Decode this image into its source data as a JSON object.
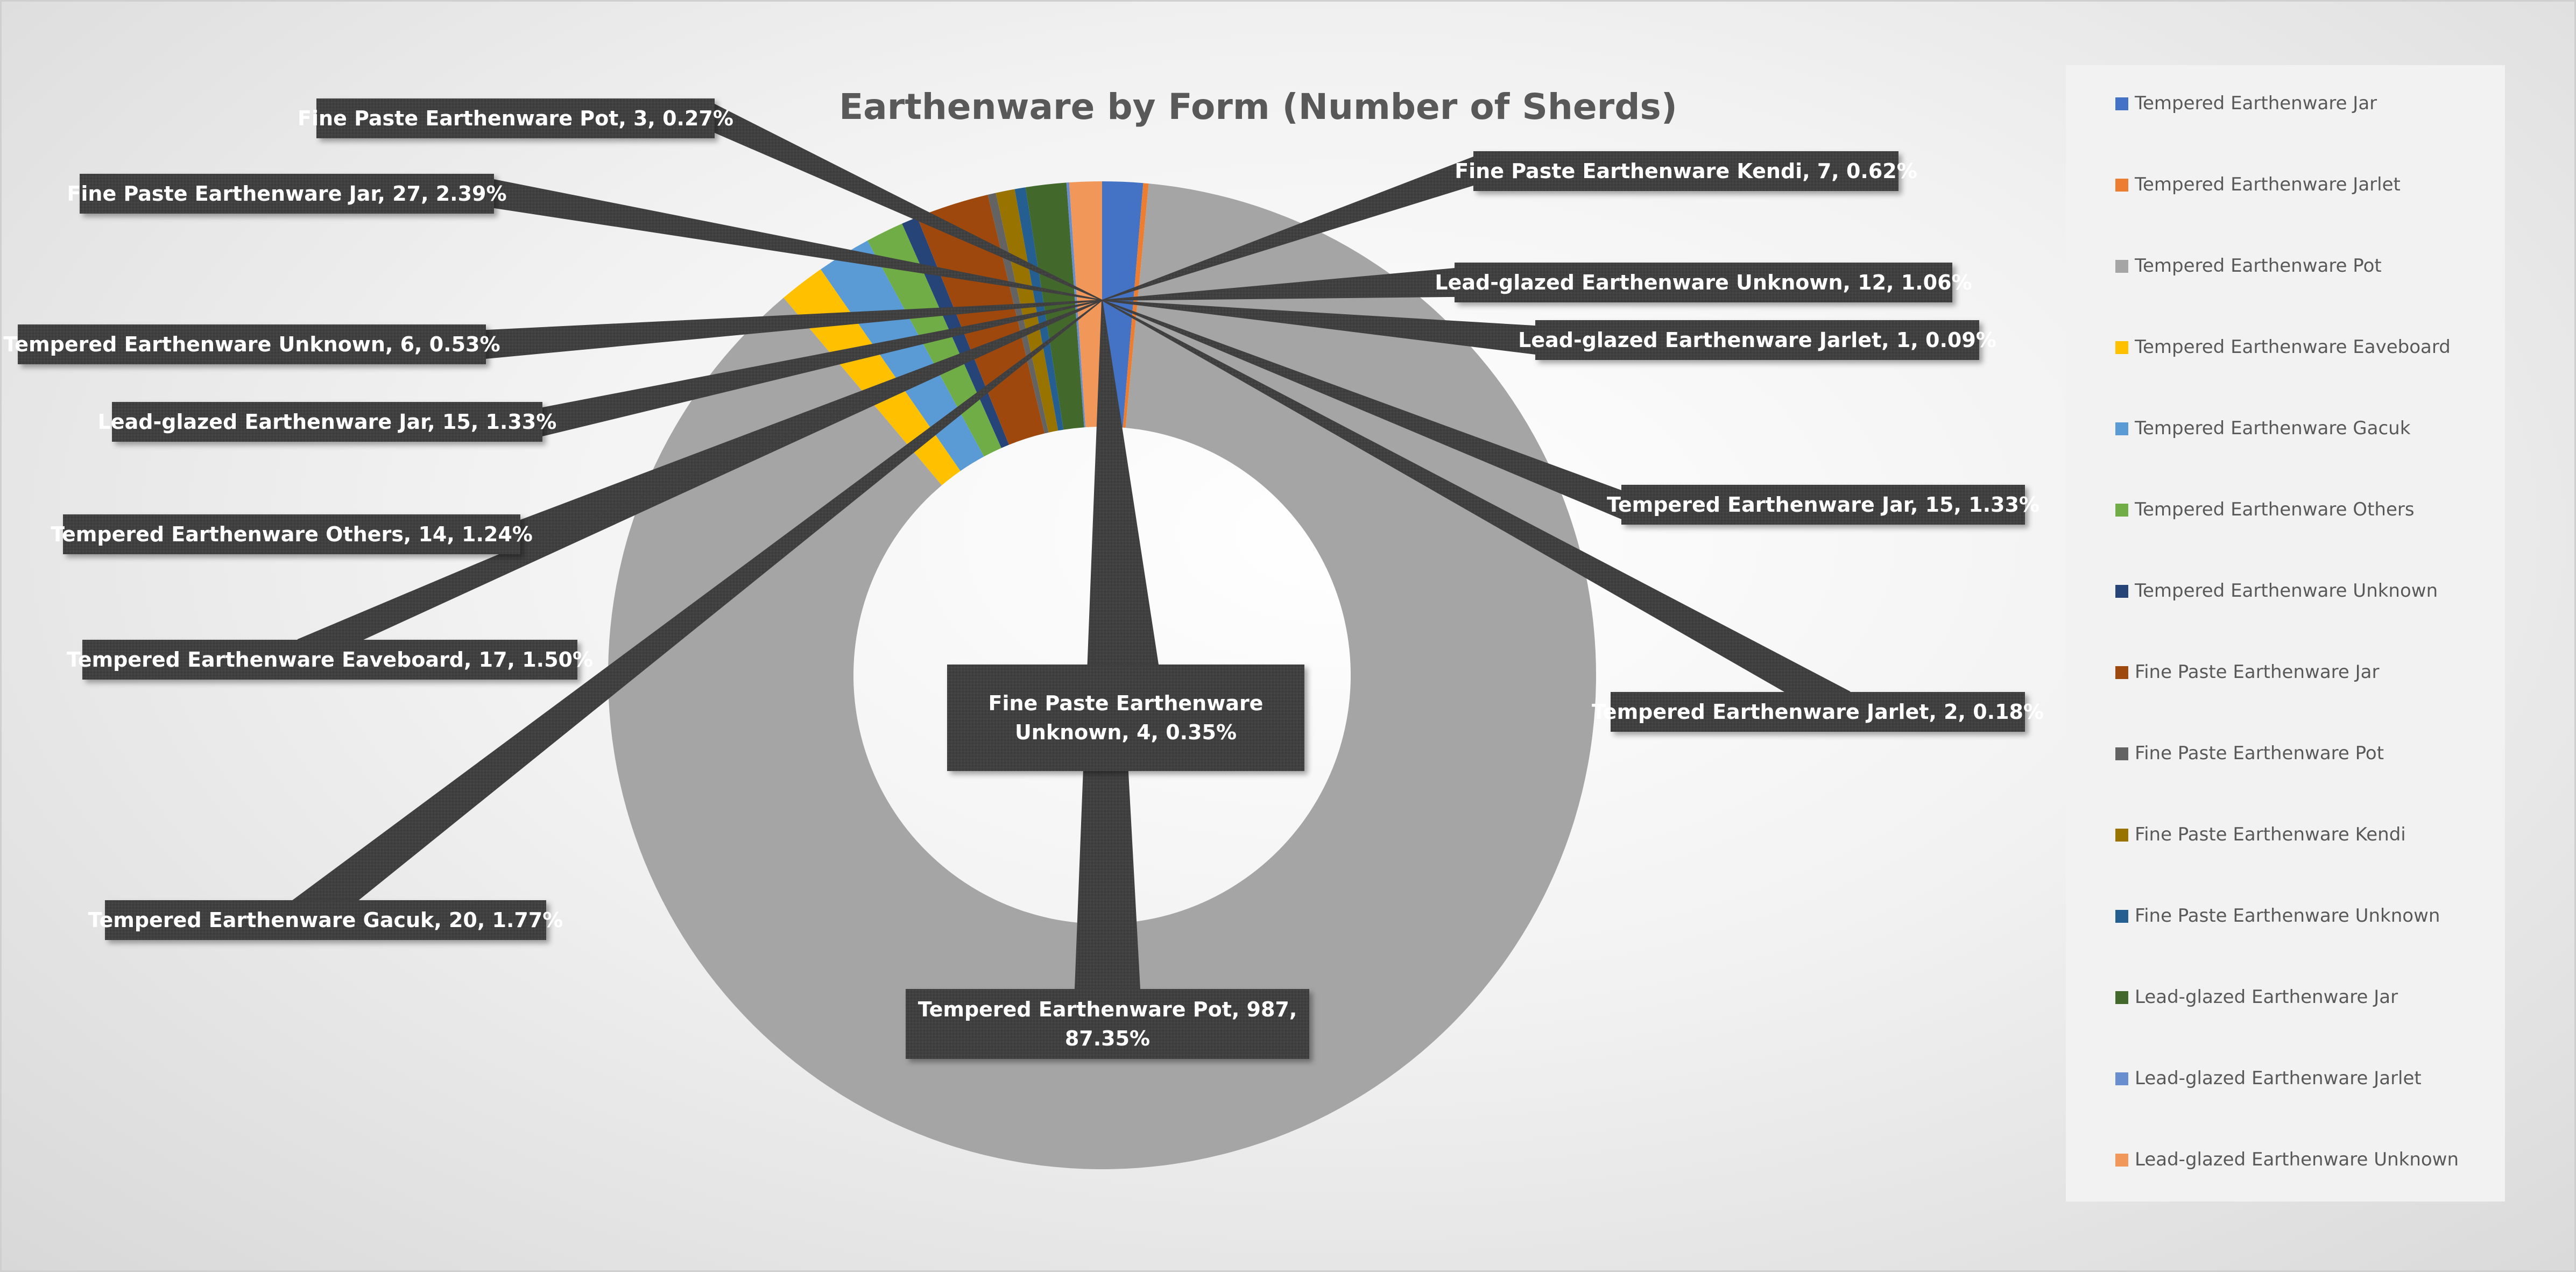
{
  "chart_data": {
    "type": "pie",
    "variant": "doughnut",
    "title": "Earthenware by Form (Number of Sherds)",
    "legend_position": "right",
    "series": [
      {
        "name": "Tempered Earthenware Jar",
        "value": 15,
        "percent": "1.33%",
        "color": "#4472C4",
        "label": "Tempered Earthenware Jar, 15, 1.33%"
      },
      {
        "name": "Tempered Earthenware Jarlet",
        "value": 2,
        "percent": "0.18%",
        "color": "#ED7D31",
        "label": "Tempered Earthenware Jarlet, 2, 0.18%"
      },
      {
        "name": "Tempered Earthenware Pot",
        "value": 987,
        "percent": "87.35%",
        "color": "#A5A5A5",
        "label": "Tempered Earthenware Pot, 987, 87.35%"
      },
      {
        "name": "Tempered Earthenware Eaveboard",
        "value": 17,
        "percent": "1.50%",
        "color": "#FFC000",
        "label": "Tempered Earthenware Eaveboard, 17, 1.50%"
      },
      {
        "name": "Tempered Earthenware Gacuk",
        "value": 20,
        "percent": "1.77%",
        "color": "#5B9BD5",
        "label": "Tempered Earthenware Gacuk, 20, 1.77%"
      },
      {
        "name": "Tempered Earthenware Others",
        "value": 14,
        "percent": "1.24%",
        "color": "#70AD47",
        "label": "Tempered Earthenware Others, 14, 1.24%"
      },
      {
        "name": "Tempered Earthenware Unknown",
        "value": 6,
        "percent": "0.53%",
        "color": "#264478",
        "label": "Tempered Earthenware Unknown, 6, 0.53%"
      },
      {
        "name": "Fine Paste Earthenware Jar",
        "value": 27,
        "percent": "2.39%",
        "color": "#9E480E",
        "label": "Fine Paste Earthenware Jar, 27, 2.39%"
      },
      {
        "name": "Fine Paste Earthenware Pot",
        "value": 3,
        "percent": "0.27%",
        "color": "#636363",
        "label": "Fine Paste Earthenware Pot, 3, 0.27%"
      },
      {
        "name": "Fine Paste Earthenware Kendi",
        "value": 7,
        "percent": "0.62%",
        "color": "#997300",
        "label": "Fine Paste Earthenware Kendi, 7, 0.62%"
      },
      {
        "name": "Fine Paste Earthenware Unknown",
        "value": 4,
        "percent": "0.35%",
        "color": "#255E91",
        "label": "Fine Paste Earthenware Unknown, 4, 0.35%"
      },
      {
        "name": "Lead-glazed Earthenware Jar",
        "value": 15,
        "percent": "1.33%",
        "color": "#43682B",
        "label": "Lead-glazed Earthenware Jar, 15, 1.33%"
      },
      {
        "name": "Lead-glazed Earthenware Jarlet",
        "value": 1,
        "percent": "0.09%",
        "color": "#698ED0",
        "label": "Lead-glazed Earthenware Jarlet, 1, 0.09%"
      },
      {
        "name": "Lead-glazed Earthenware Unknown",
        "value": 12,
        "percent": "1.06%",
        "color": "#F1975A",
        "label": "Lead-glazed Earthenware Unknown, 12, 1.06%"
      }
    ],
    "styles": {
      "label_box_color": "#404040",
      "leader_color": "#404040",
      "legend_box_color": "#f2f2f2",
      "title_color": "#595959"
    }
  }
}
